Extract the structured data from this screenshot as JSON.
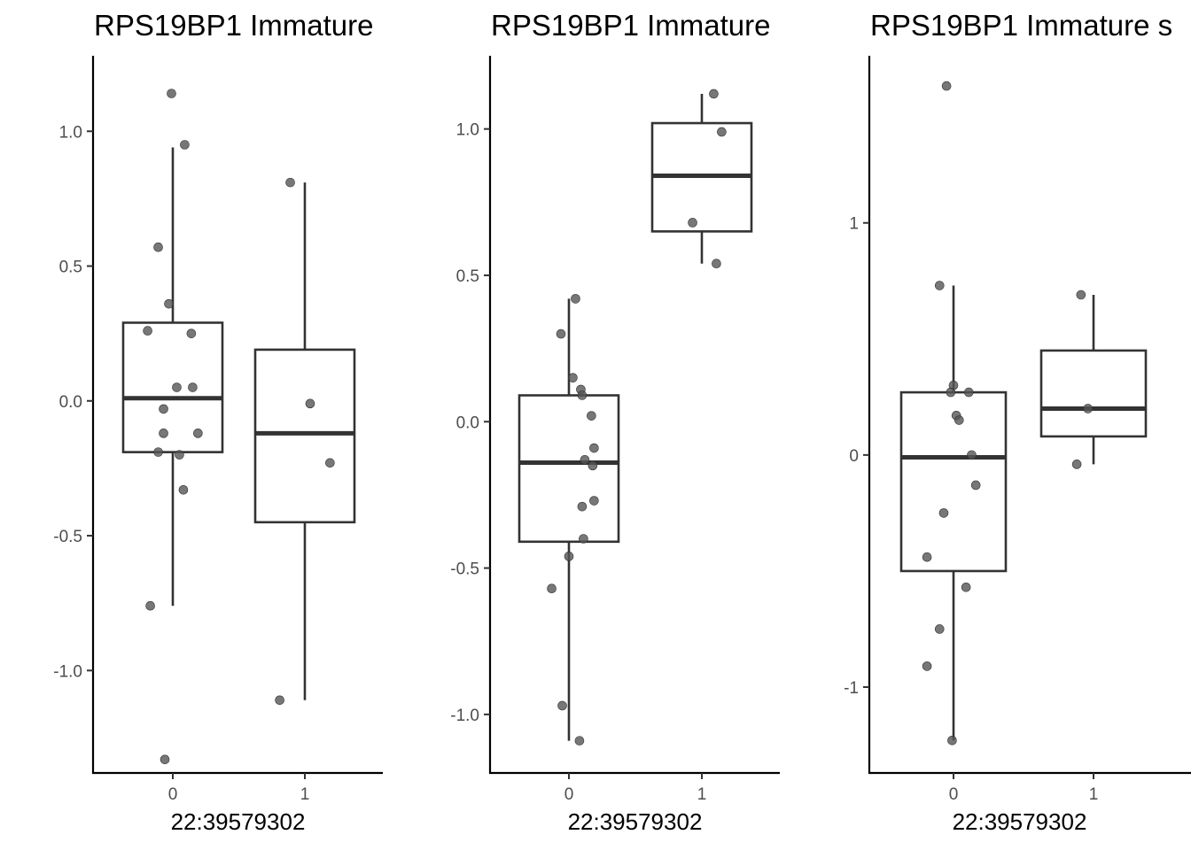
{
  "chart_data": [
    {
      "type": "boxplot",
      "title": "RPS19BP1 Immature",
      "xlabel": "22:39579302",
      "ylabel": "",
      "categories": [
        "0",
        "1"
      ],
      "ylim": [
        -1.38,
        1.28
      ],
      "yticks": [
        -1.0,
        -0.5,
        0.0,
        0.5,
        1.0
      ],
      "ytick_labels": [
        "-1.0",
        "-0.5",
        "0.0",
        "0.5",
        "1.0"
      ],
      "boxes": [
        {
          "category": "0",
          "q1": -0.19,
          "median": 0.01,
          "q3": 0.29,
          "whisker_low": -0.76,
          "whisker_high": 0.94
        },
        {
          "category": "1",
          "q1": -0.45,
          "median": -0.12,
          "q3": 0.19,
          "whisker_low": -1.11,
          "whisker_high": 0.81
        }
      ],
      "points": [
        {
          "category": "0",
          "jitter": -0.01,
          "y": 1.14
        },
        {
          "category": "0",
          "jitter": 0.09,
          "y": 0.95
        },
        {
          "category": "0",
          "jitter": -0.11,
          "y": 0.57
        },
        {
          "category": "0",
          "jitter": -0.03,
          "y": 0.36
        },
        {
          "category": "0",
          "jitter": -0.19,
          "y": 0.26
        },
        {
          "category": "0",
          "jitter": 0.14,
          "y": 0.25
        },
        {
          "category": "0",
          "jitter": 0.03,
          "y": 0.05
        },
        {
          "category": "0",
          "jitter": 0.15,
          "y": 0.05
        },
        {
          "category": "0",
          "jitter": -0.07,
          "y": -0.03
        },
        {
          "category": "0",
          "jitter": -0.07,
          "y": -0.12
        },
        {
          "category": "0",
          "jitter": 0.19,
          "y": -0.12
        },
        {
          "category": "0",
          "jitter": -0.11,
          "y": -0.19
        },
        {
          "category": "0",
          "jitter": 0.05,
          "y": -0.2
        },
        {
          "category": "0",
          "jitter": 0.08,
          "y": -0.33
        },
        {
          "category": "0",
          "jitter": -0.17,
          "y": -0.76
        },
        {
          "category": "0",
          "jitter": -0.06,
          "y": -1.33
        },
        {
          "category": "1",
          "jitter": -0.11,
          "y": 0.81
        },
        {
          "category": "1",
          "jitter": 0.04,
          "y": -0.01
        },
        {
          "category": "1",
          "jitter": 0.19,
          "y": -0.23
        },
        {
          "category": "1",
          "jitter": -0.19,
          "y": -1.11
        }
      ]
    },
    {
      "type": "boxplot",
      "title": "RPS19BP1 Immature",
      "xlabel": "22:39579302",
      "ylabel": "",
      "categories": [
        "0",
        "1"
      ],
      "ylim": [
        -1.2,
        1.25
      ],
      "yticks": [
        -1.0,
        -0.5,
        0.0,
        0.5,
        1.0
      ],
      "ytick_labels": [
        "-1.0",
        "-0.5",
        "0.0",
        "0.5",
        "1.0"
      ],
      "boxes": [
        {
          "category": "0",
          "q1": -0.41,
          "median": -0.14,
          "q3": 0.09,
          "whisker_low": -1.09,
          "whisker_high": 0.42
        },
        {
          "category": "1",
          "q1": 0.65,
          "median": 0.84,
          "q3": 1.02,
          "whisker_low": 0.54,
          "whisker_high": 1.12
        }
      ],
      "points": [
        {
          "category": "0",
          "jitter": 0.05,
          "y": 0.42
        },
        {
          "category": "0",
          "jitter": -0.06,
          "y": 0.3
        },
        {
          "category": "0",
          "jitter": 0.03,
          "y": 0.15
        },
        {
          "category": "0",
          "jitter": 0.09,
          "y": 0.11
        },
        {
          "category": "0",
          "jitter": 0.1,
          "y": 0.09
        },
        {
          "category": "0",
          "jitter": 0.17,
          "y": 0.02
        },
        {
          "category": "0",
          "jitter": 0.19,
          "y": -0.09
        },
        {
          "category": "0",
          "jitter": 0.12,
          "y": -0.13
        },
        {
          "category": "0",
          "jitter": 0.18,
          "y": -0.15
        },
        {
          "category": "0",
          "jitter": 0.19,
          "y": -0.27
        },
        {
          "category": "0",
          "jitter": 0.1,
          "y": -0.29
        },
        {
          "category": "0",
          "jitter": 0.11,
          "y": -0.4
        },
        {
          "category": "0",
          "jitter": 0.0,
          "y": -0.46
        },
        {
          "category": "0",
          "jitter": -0.13,
          "y": -0.57
        },
        {
          "category": "0",
          "jitter": -0.05,
          "y": -0.97
        },
        {
          "category": "0",
          "jitter": 0.08,
          "y": -1.09
        },
        {
          "category": "1",
          "jitter": 0.09,
          "y": 1.12
        },
        {
          "category": "1",
          "jitter": 0.15,
          "y": 0.99
        },
        {
          "category": "1",
          "jitter": -0.07,
          "y": 0.68
        },
        {
          "category": "1",
          "jitter": 0.11,
          "y": 0.54
        }
      ]
    },
    {
      "type": "boxplot",
      "title": "RPS19BP1 Immature s",
      "xlabel": "22:39579302",
      "ylabel": "",
      "categories": [
        "0",
        "1"
      ],
      "ylim": [
        -1.37,
        1.72
      ],
      "yticks": [
        -1,
        0,
        1
      ],
      "ytick_labels": [
        "-1",
        "0",
        "1"
      ],
      "boxes": [
        {
          "category": "0",
          "q1": -0.5,
          "median": -0.01,
          "q3": 0.27,
          "whisker_low": -1.23,
          "whisker_high": 0.73
        },
        {
          "category": "1",
          "q1": 0.08,
          "median": 0.2,
          "q3": 0.45,
          "whisker_low": -0.04,
          "whisker_high": 0.69
        }
      ],
      "points": [
        {
          "category": "0",
          "jitter": -0.05,
          "y": 1.59
        },
        {
          "category": "0",
          "jitter": -0.1,
          "y": 0.73
        },
        {
          "category": "0",
          "jitter": 0.0,
          "y": 0.3
        },
        {
          "category": "0",
          "jitter": -0.02,
          "y": 0.27
        },
        {
          "category": "0",
          "jitter": 0.11,
          "y": 0.27
        },
        {
          "category": "0",
          "jitter": 0.02,
          "y": 0.17
        },
        {
          "category": "0",
          "jitter": 0.04,
          "y": 0.15
        },
        {
          "category": "0",
          "jitter": 0.13,
          "y": 0.0
        },
        {
          "category": "0",
          "jitter": 0.16,
          "y": -0.13
        },
        {
          "category": "0",
          "jitter": -0.07,
          "y": -0.25
        },
        {
          "category": "0",
          "jitter": -0.19,
          "y": -0.44
        },
        {
          "category": "0",
          "jitter": 0.09,
          "y": -0.57
        },
        {
          "category": "0",
          "jitter": -0.1,
          "y": -0.75
        },
        {
          "category": "0",
          "jitter": -0.19,
          "y": -0.91
        },
        {
          "category": "0",
          "jitter": -0.01,
          "y": -1.23
        },
        {
          "category": "1",
          "jitter": -0.09,
          "y": 0.69
        },
        {
          "category": "1",
          "jitter": -0.04,
          "y": 0.2
        },
        {
          "category": "1",
          "jitter": -0.12,
          "y": -0.04
        }
      ]
    }
  ]
}
